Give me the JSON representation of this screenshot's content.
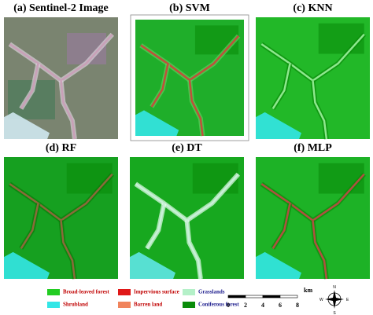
{
  "panels": [
    {
      "title": "(a) Sentinel-2 Image"
    },
    {
      "title": "(b) SVM"
    },
    {
      "title": "(c) KNN"
    },
    {
      "title": "(d) RF"
    },
    {
      "title": "(e) DT"
    },
    {
      "title": "(f) MLP"
    }
  ],
  "legend": [
    {
      "label": "Broad-leaved forest",
      "color": "#22cc22"
    },
    {
      "label": "Shrubland",
      "color": "#33e6e6"
    },
    {
      "label": "Impervious surface",
      "color": "#e01818"
    },
    {
      "label": "Barren land",
      "color": "#f0845c"
    },
    {
      "label": "Grasslands",
      "color": "#b4f0c8"
    },
    {
      "label": "Coniferous forest",
      "color": "#0a8c0a"
    }
  ],
  "scale_bar": {
    "ticks": [
      "0",
      "2",
      "4",
      "6",
      "8"
    ],
    "unit": "km"
  },
  "compass": {
    "north": "N",
    "south": "S",
    "east": "E",
    "west": "W"
  }
}
